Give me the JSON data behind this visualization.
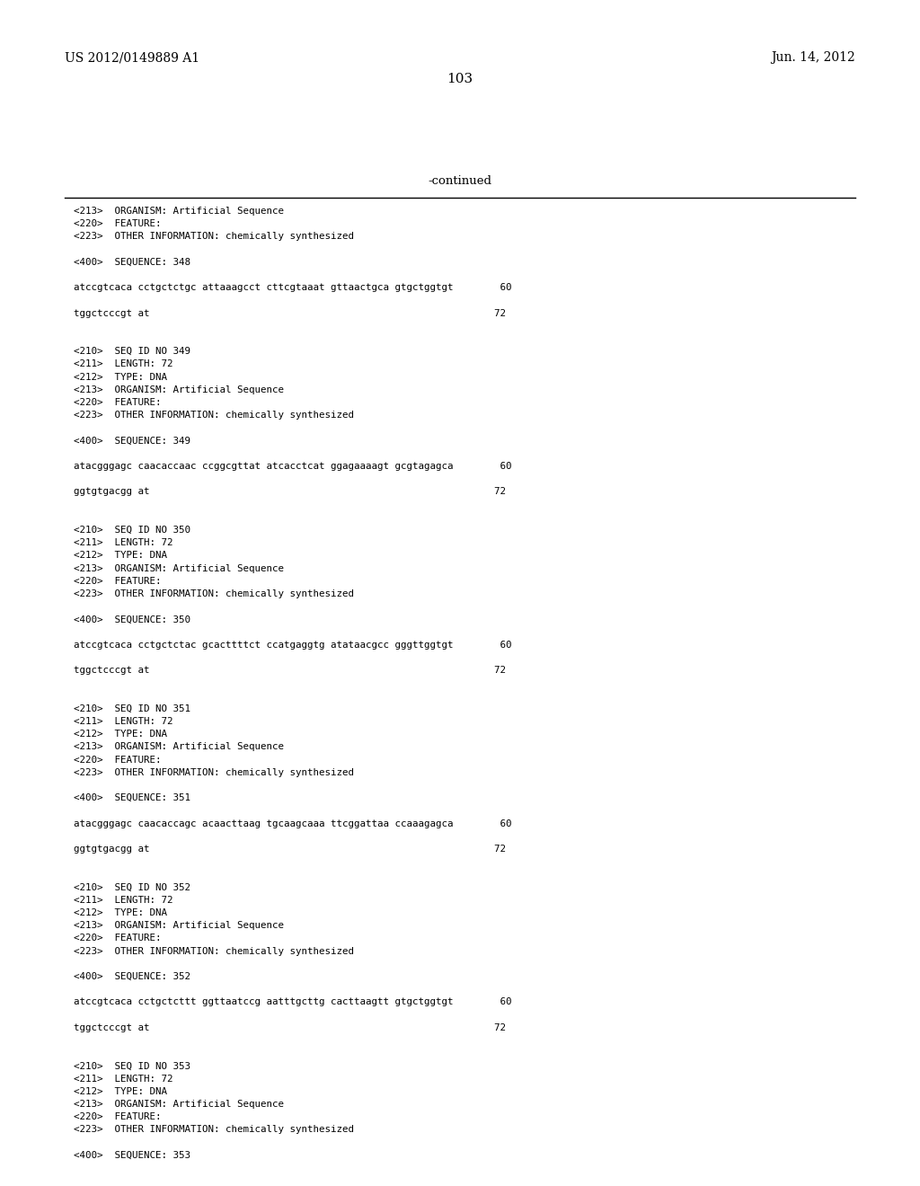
{
  "background_color": "#ffffff",
  "header_left": "US 2012/0149889 A1",
  "header_right": "Jun. 14, 2012",
  "page_number": "103",
  "continued_text": "-continued",
  "figsize": [
    10.24,
    13.2
  ],
  "dpi": 100,
  "content_lines": [
    {
      "text": "<213>  ORGANISM: Artificial Sequence",
      "empty": false
    },
    {
      "text": "<220>  FEATURE:",
      "empty": false
    },
    {
      "text": "<223>  OTHER INFORMATION: chemically synthesized",
      "empty": false
    },
    {
      "text": "",
      "empty": true
    },
    {
      "text": "<400>  SEQUENCE: 348",
      "empty": false
    },
    {
      "text": "",
      "empty": true
    },
    {
      "text": "atccgtcaca cctgctctgc attaaagcct cttcgtaaat gttaactgca gtgctggtgt        60",
      "empty": false
    },
    {
      "text": "",
      "empty": true
    },
    {
      "text": "tggctcccgt at                                                           72",
      "empty": false
    },
    {
      "text": "",
      "empty": true
    },
    {
      "text": "",
      "empty": true
    },
    {
      "text": "<210>  SEQ ID NO 349",
      "empty": false
    },
    {
      "text": "<211>  LENGTH: 72",
      "empty": false
    },
    {
      "text": "<212>  TYPE: DNA",
      "empty": false
    },
    {
      "text": "<213>  ORGANISM: Artificial Sequence",
      "empty": false
    },
    {
      "text": "<220>  FEATURE:",
      "empty": false
    },
    {
      "text": "<223>  OTHER INFORMATION: chemically synthesized",
      "empty": false
    },
    {
      "text": "",
      "empty": true
    },
    {
      "text": "<400>  SEQUENCE: 349",
      "empty": false
    },
    {
      "text": "",
      "empty": true
    },
    {
      "text": "atacgggagc caacaccaac ccggcgttat atcacctcat ggagaaaagt gcgtagagca        60",
      "empty": false
    },
    {
      "text": "",
      "empty": true
    },
    {
      "text": "ggtgtgacgg at                                                           72",
      "empty": false
    },
    {
      "text": "",
      "empty": true
    },
    {
      "text": "",
      "empty": true
    },
    {
      "text": "<210>  SEQ ID NO 350",
      "empty": false
    },
    {
      "text": "<211>  LENGTH: 72",
      "empty": false
    },
    {
      "text": "<212>  TYPE: DNA",
      "empty": false
    },
    {
      "text": "<213>  ORGANISM: Artificial Sequence",
      "empty": false
    },
    {
      "text": "<220>  FEATURE:",
      "empty": false
    },
    {
      "text": "<223>  OTHER INFORMATION: chemically synthesized",
      "empty": false
    },
    {
      "text": "",
      "empty": true
    },
    {
      "text": "<400>  SEQUENCE: 350",
      "empty": false
    },
    {
      "text": "",
      "empty": true
    },
    {
      "text": "atccgtcaca cctgctctac gcacttttct ccatgaggtg atataacgcc gggttggtgt        60",
      "empty": false
    },
    {
      "text": "",
      "empty": true
    },
    {
      "text": "tggctcccgt at                                                           72",
      "empty": false
    },
    {
      "text": "",
      "empty": true
    },
    {
      "text": "",
      "empty": true
    },
    {
      "text": "<210>  SEQ ID NO 351",
      "empty": false
    },
    {
      "text": "<211>  LENGTH: 72",
      "empty": false
    },
    {
      "text": "<212>  TYPE: DNA",
      "empty": false
    },
    {
      "text": "<213>  ORGANISM: Artificial Sequence",
      "empty": false
    },
    {
      "text": "<220>  FEATURE:",
      "empty": false
    },
    {
      "text": "<223>  OTHER INFORMATION: chemically synthesized",
      "empty": false
    },
    {
      "text": "",
      "empty": true
    },
    {
      "text": "<400>  SEQUENCE: 351",
      "empty": false
    },
    {
      "text": "",
      "empty": true
    },
    {
      "text": "atacgggagc caacaccagc acaacttaag tgcaagcaaa ttcggattaa ccaaagagca        60",
      "empty": false
    },
    {
      "text": "",
      "empty": true
    },
    {
      "text": "ggtgtgacgg at                                                           72",
      "empty": false
    },
    {
      "text": "",
      "empty": true
    },
    {
      "text": "",
      "empty": true
    },
    {
      "text": "<210>  SEQ ID NO 352",
      "empty": false
    },
    {
      "text": "<211>  LENGTH: 72",
      "empty": false
    },
    {
      "text": "<212>  TYPE: DNA",
      "empty": false
    },
    {
      "text": "<213>  ORGANISM: Artificial Sequence",
      "empty": false
    },
    {
      "text": "<220>  FEATURE:",
      "empty": false
    },
    {
      "text": "<223>  OTHER INFORMATION: chemically synthesized",
      "empty": false
    },
    {
      "text": "",
      "empty": true
    },
    {
      "text": "<400>  SEQUENCE: 352",
      "empty": false
    },
    {
      "text": "",
      "empty": true
    },
    {
      "text": "atccgtcaca cctgctcttt ggttaatccg aatttgcttg cacttaagtt gtgctggtgt        60",
      "empty": false
    },
    {
      "text": "",
      "empty": true
    },
    {
      "text": "tggctcccgt at                                                           72",
      "empty": false
    },
    {
      "text": "",
      "empty": true
    },
    {
      "text": "",
      "empty": true
    },
    {
      "text": "<210>  SEQ ID NO 353",
      "empty": false
    },
    {
      "text": "<211>  LENGTH: 72",
      "empty": false
    },
    {
      "text": "<212>  TYPE: DNA",
      "empty": false
    },
    {
      "text": "<213>  ORGANISM: Artificial Sequence",
      "empty": false
    },
    {
      "text": "<220>  FEATURE:",
      "empty": false
    },
    {
      "text": "<223>  OTHER INFORMATION: chemically synthesized",
      "empty": false
    },
    {
      "text": "",
      "empty": true
    },
    {
      "text": "<400>  SEQUENCE: 353",
      "empty": false
    }
  ]
}
